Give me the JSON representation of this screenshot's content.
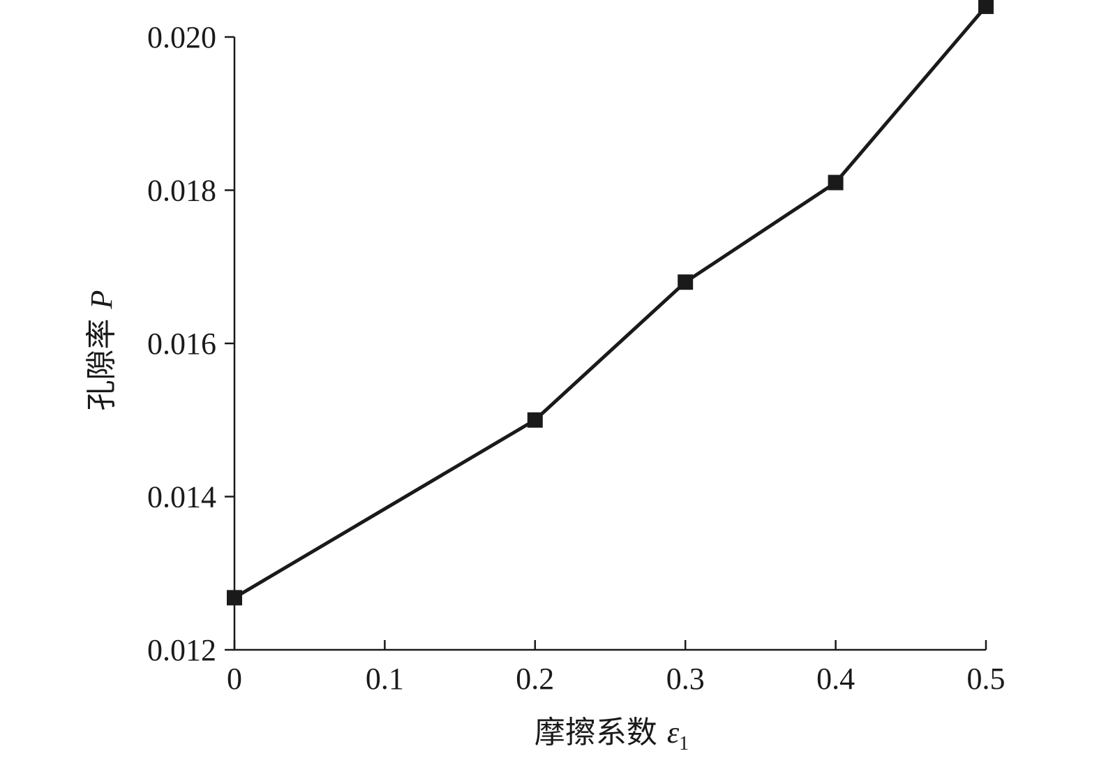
{
  "chart_data": {
    "type": "line",
    "title": "",
    "xlabel": {
      "text": "摩擦系数 ",
      "symbol": "ε",
      "subscript": "1"
    },
    "ylabel": {
      "text": "孔隙率 ",
      "symbol": "P"
    },
    "xlim": [
      0,
      0.5
    ],
    "ylim": [
      0.012,
      0.02
    ],
    "x_ticks": [
      0,
      0.1,
      0.2,
      0.3,
      0.4,
      0.5
    ],
    "x_tick_labels": [
      "0",
      "0.1",
      "0.2",
      "0.3",
      "0.4",
      "0.5"
    ],
    "y_ticks": [
      0.012,
      0.014,
      0.016,
      0.018,
      0.02
    ],
    "y_tick_labels": [
      "0.012",
      "0.014",
      "0.016",
      "0.018",
      "0.020"
    ],
    "grid": false,
    "legend": "none",
    "colors": {
      "line": "#1a1a1a",
      "marker": "#1a1a1a",
      "axis": "#1a1a1a"
    },
    "marker": "square",
    "series": [
      {
        "x": [
          0,
          0.2,
          0.3,
          0.4,
          0.5
        ],
        "y": [
          0.01268,
          0.015,
          0.0168,
          0.0181,
          0.0204
        ]
      }
    ]
  }
}
